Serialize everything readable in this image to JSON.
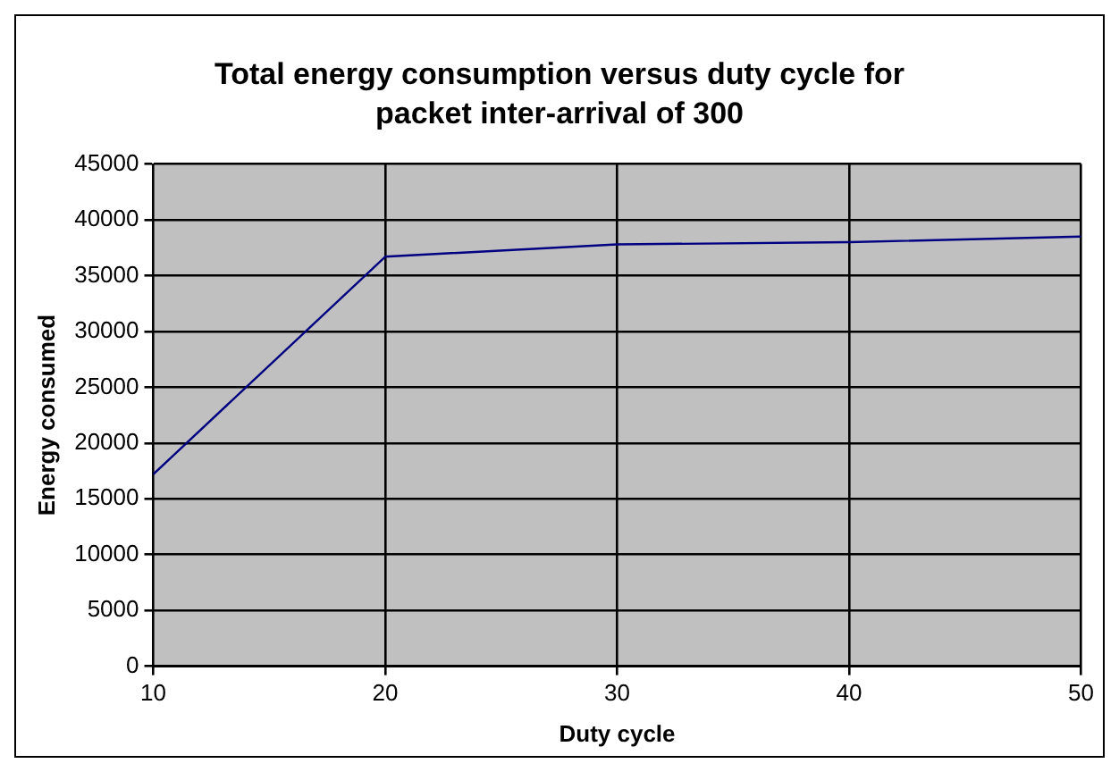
{
  "chart_data": {
    "type": "line",
    "title": "Total energy consumption versus duty cycle for packet inter-arrival of 300",
    "xlabel": "Duty cycle",
    "ylabel": "Energy consumed",
    "x": [
      10,
      20,
      30,
      40,
      50
    ],
    "series": [
      {
        "color": "#000080",
        "values": [
          17200,
          36700,
          37800,
          38000,
          38500
        ]
      }
    ],
    "xlim": [
      10,
      50
    ],
    "xticks": [
      10,
      20,
      30,
      40,
      50
    ],
    "ylim": [
      0,
      45000
    ],
    "yticks": [
      0,
      5000,
      10000,
      15000,
      20000,
      25000,
      30000,
      35000,
      40000,
      45000
    ],
    "grid": true,
    "legend": false,
    "marker": "none",
    "line_style": "solid"
  }
}
